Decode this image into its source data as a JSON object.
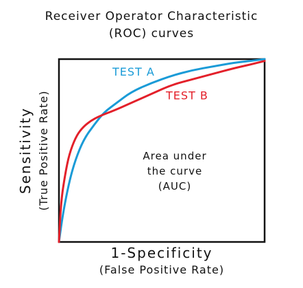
{
  "chart_data": {
    "type": "line",
    "title": [
      "Receiver Operator Characteristic",
      "(ROC) curves"
    ],
    "xlabel": "1-Specificity",
    "xlabel_sub": "(False Positive Rate)",
    "ylabel": "Sensitivity",
    "ylabel_sub": "(True Positive Rate)",
    "xlim": [
      0,
      1
    ],
    "ylim": [
      0,
      1
    ],
    "grid": false,
    "legend": "inline labels",
    "annotation": [
      "Area under",
      "the curve",
      "(AUC)"
    ],
    "series": [
      {
        "name": "Test A",
        "color": "#1a9bd7",
        "x": [
          0,
          0.02,
          0.05,
          0.08,
          0.12,
          0.17,
          0.22,
          0.28,
          0.35,
          0.45,
          0.55,
          0.65,
          0.75,
          0.85,
          0.93,
          1.0
        ],
        "y": [
          0,
          0.16,
          0.33,
          0.45,
          0.56,
          0.64,
          0.71,
          0.76,
          0.82,
          0.87,
          0.91,
          0.94,
          0.96,
          0.98,
          0.99,
          1.0
        ]
      },
      {
        "name": "Test B",
        "color": "#e3202a",
        "x": [
          0,
          0.01,
          0.03,
          0.05,
          0.08,
          0.11,
          0.15,
          0.2,
          0.27,
          0.35,
          0.45,
          0.55,
          0.65,
          0.75,
          0.85,
          0.93,
          1.0
        ],
        "y": [
          0,
          0.22,
          0.37,
          0.48,
          0.57,
          0.62,
          0.66,
          0.69,
          0.72,
          0.76,
          0.81,
          0.86,
          0.89,
          0.92,
          0.95,
          0.97,
          0.99
        ]
      }
    ]
  }
}
